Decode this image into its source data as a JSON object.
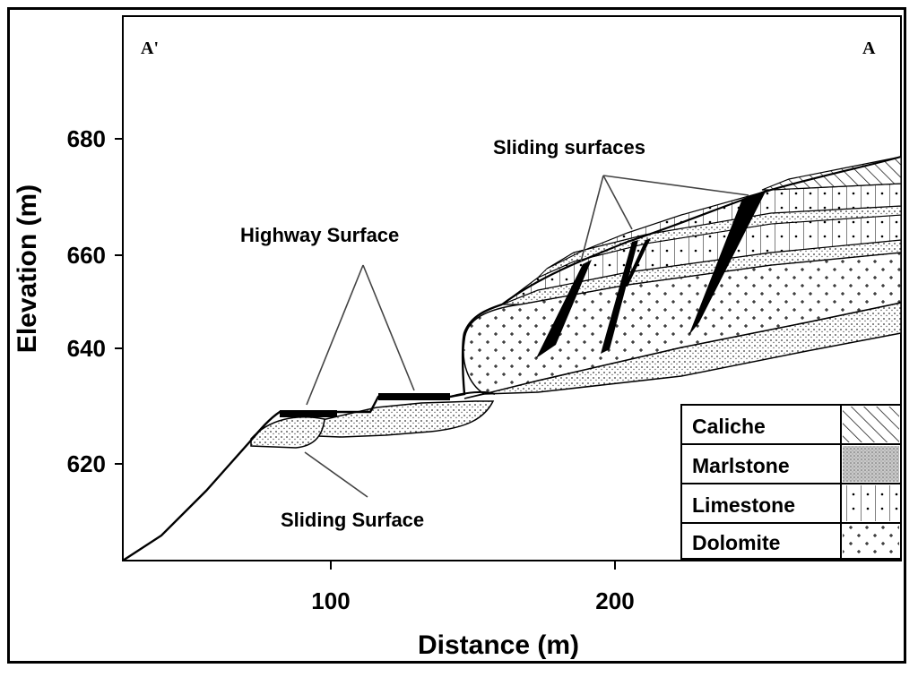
{
  "section": {
    "left_label": "A'",
    "right_label": "A"
  },
  "axes": {
    "ylabel": "Elevation (m)",
    "xlabel": "Distance (m)",
    "yticks": [
      "620",
      "640",
      "660",
      "680"
    ],
    "xticks": [
      "100",
      "200"
    ]
  },
  "annotations": {
    "sliding_surfaces": "Sliding surfaces",
    "highway_surface": "Highway Surface",
    "sliding_surface": "Sliding Surface"
  },
  "legend": [
    {
      "label": "Caliche",
      "pattern": "diagonal-hatch"
    },
    {
      "label": "Marlstone",
      "pattern": "grey-stipple"
    },
    {
      "label": "Limestone",
      "pattern": "brick-dots"
    },
    {
      "label": "Dolomite",
      "pattern": "crosses"
    }
  ]
}
